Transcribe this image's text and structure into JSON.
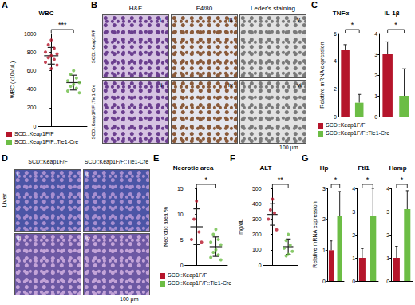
{
  "chart_data": [
    {
      "type": "scatter",
      "panel": "A",
      "title": "WBC",
      "y_label": "WBC (x10³/μL)",
      "ylim": [
        0,
        1000
      ],
      "yticks": [
        0,
        200,
        400,
        600,
        800,
        1000
      ],
      "annotations": [
        "***"
      ],
      "legend": "bottom",
      "tick_labels": "y",
      "series": [
        {
          "name": "SCD::Keap1F/F",
          "color": "#b5152b",
          "values": [
            930,
            880,
            840,
            800,
            780,
            760,
            740,
            720,
            690,
            660,
            620
          ],
          "mean": 760,
          "sd": 90
        },
        {
          "name": "SCD::Keap1F/F::Tie1-Cre",
          "color": "#6cbd45",
          "values": [
            600,
            560,
            520,
            490,
            470,
            450,
            430,
            410,
            380,
            360
          ],
          "mean": 470,
          "sd": 80
        }
      ]
    },
    {
      "type": "bar",
      "panel": "C",
      "title": "TNFα",
      "y_label": "Relative mRNA expression",
      "ylim": [
        0,
        6
      ],
      "yticks": [
        0,
        2,
        4,
        6
      ],
      "annotations": [
        "*"
      ],
      "legend": "bottom",
      "tick_labels": "y",
      "series": [
        {
          "name": "SCD::Keap1F/F",
          "color": "#b5152b",
          "values": [
            4.8
          ],
          "error": [
            0.4
          ]
        },
        {
          "name": "SCD::Keap1F/F::Tie1-Cre",
          "color": "#6cbd45",
          "values": [
            1.0
          ],
          "error": [
            0.6
          ]
        }
      ]
    },
    {
      "type": "bar",
      "title": "IL-1β",
      "ylim": [
        0,
        4
      ],
      "yticks": [
        0,
        1,
        2,
        3,
        4
      ],
      "annotations": [
        "*"
      ],
      "tick_labels": "y",
      "series": [
        {
          "name": "SCD::Keap1F/F",
          "color": "#b5152b",
          "values": [
            3.0
          ],
          "error": [
            0.6
          ]
        },
        {
          "name": "SCD::Keap1F/F::Tie1-Cre",
          "color": "#6cbd45",
          "values": [
            1.0
          ],
          "error": [
            1.3
          ]
        }
      ]
    },
    {
      "type": "scatter",
      "panel": "E",
      "title": "Necrotic area",
      "y_label": "Necrotic area %",
      "ylim": [
        0,
        15
      ],
      "yticks": [
        0,
        5,
        10,
        15
      ],
      "annotations": [
        "*"
      ],
      "legend": "bottom",
      "tick_labels": "y",
      "series": [
        {
          "name": "SCD::Keap1F/F",
          "color": "#b5152b",
          "values": [
            12.5,
            9,
            6.5,
            5,
            4.5
          ],
          "mean": 7.5,
          "sd": 3.5
        },
        {
          "name": "SCD::Keap1F/F::Tie1-Cre",
          "color": "#6cbd45",
          "values": [
            7,
            6,
            5,
            4.5,
            4,
            3,
            2.5,
            2,
            1.5,
            1
          ],
          "mean": 3.6,
          "sd": 1.9
        }
      ]
    },
    {
      "type": "scatter",
      "panel": "F",
      "title": "ALT",
      "y_label": "mg/dL",
      "ylim": [
        0,
        500
      ],
      "yticks": [
        0,
        100,
        200,
        300,
        400,
        500
      ],
      "annotations": [
        "**"
      ],
      "tick_labels": "y",
      "series": [
        {
          "name": "SCD::Keap1F/F",
          "color": "#b5152b",
          "values": [
            430,
            360,
            340,
            300,
            230
          ],
          "mean": 330,
          "sd": 70
        },
        {
          "name": "SCD::Keap1F/F::Tie1-Cre",
          "color": "#6cbd45",
          "values": [
            200,
            160,
            130,
            110,
            90,
            70,
            60
          ],
          "mean": 120,
          "sd": 50
        }
      ]
    },
    {
      "type": "bar",
      "panel": "G",
      "title": "Hp",
      "y_label": "Relative mRNA expression",
      "ylim": [
        0,
        3
      ],
      "yticks": [
        0,
        1,
        2,
        3
      ],
      "annotations": [
        "*"
      ],
      "tick_labels": "y",
      "series": [
        {
          "name": "SCD::Keap1F/F",
          "color": "#b5152b",
          "values": [
            1.0
          ],
          "error": [
            0.3
          ]
        },
        {
          "name": "SCD::Keap1F/F::Tie1-Cre",
          "color": "#6cbd45",
          "values": [
            2.1
          ],
          "error": [
            0.8
          ]
        }
      ]
    },
    {
      "type": "bar",
      "title": "Ftl1",
      "ylim": [
        0,
        4
      ],
      "yticks": [
        0,
        1,
        2,
        3,
        4
      ],
      "annotations": [
        "*"
      ],
      "tick_labels": "y",
      "series": [
        {
          "name": "SCD::Keap1F/F",
          "color": "#b5152b",
          "values": [
            1.0
          ],
          "error": [
            0.4
          ]
        },
        {
          "name": "SCD::Keap1F/F::Tie1-Cre",
          "color": "#6cbd45",
          "values": [
            2.8
          ],
          "error": [
            1.2
          ]
        }
      ]
    },
    {
      "type": "bar",
      "title": "Hamp",
      "ylim": [
        0,
        4
      ],
      "yticks": [
        0,
        1,
        2,
        3,
        4
      ],
      "annotations": [
        "*"
      ],
      "tick_labels": "y",
      "series": [
        {
          "name": "SCD::Keap1F/F",
          "color": "#b5152b",
          "values": [
            1.0
          ],
          "error": [
            0.5
          ]
        },
        {
          "name": "SCD::Keap1F/F::Tie1-Cre",
          "color": "#6cbd45",
          "values": [
            3.1
          ],
          "error": [
            0.8
          ]
        }
      ]
    }
  ],
  "image_panels": [
    {
      "panel": "B",
      "columns": [
        "H&E",
        "F4/80",
        "Leder's staining"
      ],
      "rows": [
        "SCD::Keap1F/F",
        "SCD::Keap1F/F::Tie1-Cre"
      ],
      "sub_labels": [
        "i",
        "ii",
        "iii",
        "iv",
        "v",
        "vi"
      ],
      "scale_bar": "100 μm"
    },
    {
      "panel": "D",
      "columns": [
        "SCD::Keap1F/F",
        "SCD::Keap1F/F::Tie1-Cre"
      ],
      "row_label": "Liver",
      "sub_labels": [
        "i",
        "ii",
        "iii",
        "iv"
      ],
      "scale_bar": "100 μm"
    }
  ]
}
